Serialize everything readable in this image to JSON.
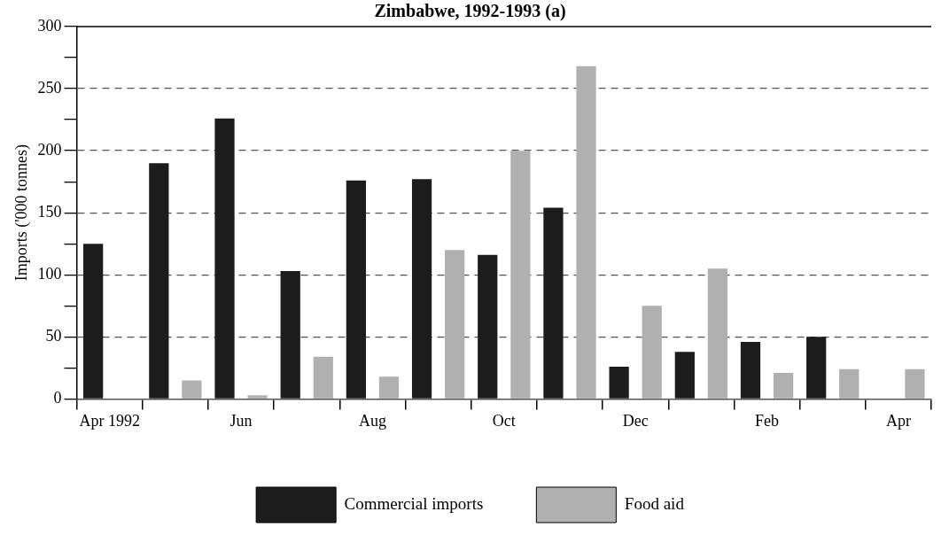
{
  "chart_data": {
    "type": "bar",
    "title": "Zimbabwe, 1992-1993 (a)",
    "ylabel": "Imports ('000 tonnes)",
    "categories": [
      "Apr 1992",
      null,
      "Jun",
      null,
      "Aug",
      null,
      "Oct",
      null,
      "Dec",
      null,
      "Feb",
      null,
      "Apr"
    ],
    "series": [
      {
        "name": "Commercial imports",
        "color": "#1c1c1c",
        "values": [
          125,
          190,
          226,
          103,
          176,
          177,
          116,
          154,
          26,
          38,
          46,
          50,
          null
        ]
      },
      {
        "name": "Food aid",
        "color": "#b0b0b0",
        "values": [
          0,
          15,
          3,
          34,
          18,
          120,
          200,
          268,
          75,
          105,
          21,
          24,
          24
        ]
      }
    ],
    "ylim": [
      0,
      300
    ],
    "yticks": [
      0,
      {
        "value": 25,
        "label": null
      },
      50,
      {
        "value": 75,
        "label": null
      },
      100,
      {
        "value": 125,
        "label": null
      },
      150,
      {
        "value": 175,
        "label": null
      },
      200,
      {
        "value": 225,
        "label": null
      },
      250,
      {
        "value": 275,
        "label": null
      },
      300
    ],
    "grid": "y",
    "legend": "bottom"
  }
}
